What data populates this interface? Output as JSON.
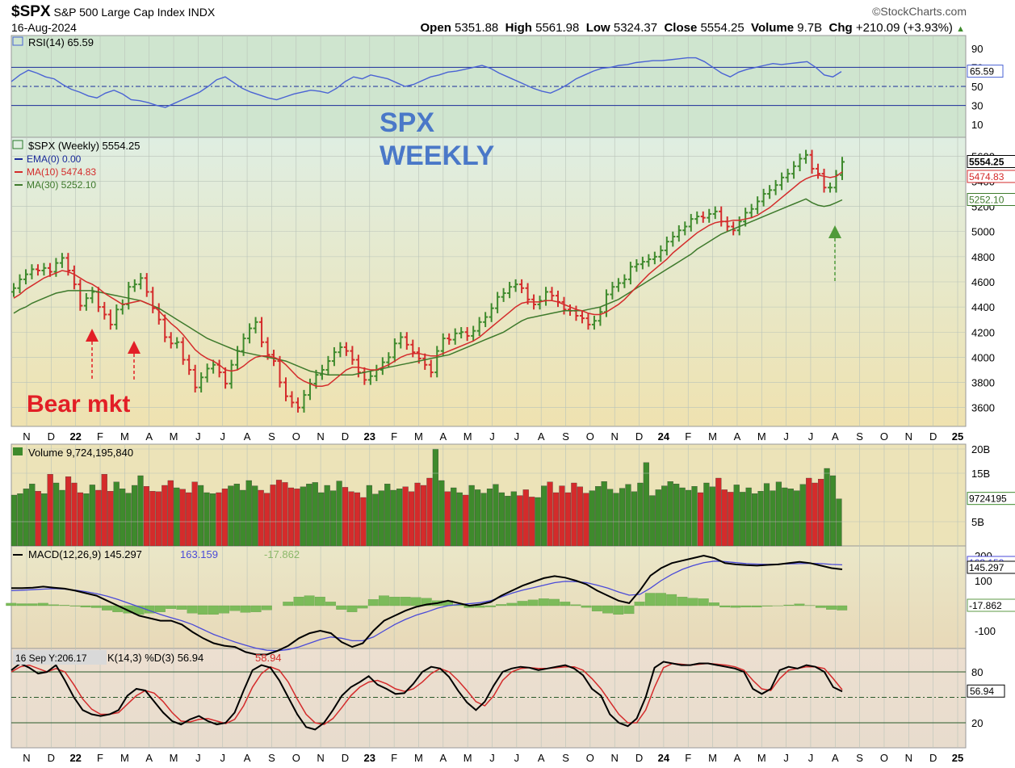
{
  "header": {
    "symbol": "$SPX",
    "name": "S&P 500 Large Cap Index",
    "exchange": "INDX",
    "date": "16-Aug-2024",
    "brand": "©StockCharts.com",
    "open_label": "Open",
    "open": "5351.88",
    "high_label": "High",
    "high": "5561.98",
    "low_label": "Low",
    "low": "5324.37",
    "close_label": "Close",
    "close": "5554.25",
    "volume_label": "Volume",
    "volume": "9.7B",
    "chg_label": "Chg",
    "chg": "+210.09 (+3.93%)",
    "chg_arrow": "▲"
  },
  "annotations": {
    "overlay_text_1": "SPX",
    "overlay_text_2": "WEEKLY",
    "bear_text": "Bear mkt",
    "overlay_color": "#4a78c8",
    "bear_color": "#e21f26",
    "arrow_green": "#4f9a3a"
  },
  "colors": {
    "up": "#3e8a2c",
    "down": "#d42b2b",
    "ema_label": "#1a2a99",
    "ma10": "#d42b2b",
    "ma30": "#3e7a2c",
    "rsi": "#4a63d4",
    "macd": "#000000",
    "signal": "#4a4ad8",
    "hist": "#7cbb5a",
    "grid": "#b9c3b9"
  },
  "chart_data": [
    {
      "type": "line",
      "panel": "RSI",
      "legend": "RSI(14) 65.59",
      "ylim": [
        0,
        100
      ],
      "yticks": [
        "90",
        "70",
        "50",
        "30",
        "10"
      ],
      "reference_lines": [
        70,
        50,
        30
      ],
      "last_value": "65.59",
      "values": [
        55,
        62,
        67,
        64,
        60,
        58,
        52,
        47,
        44,
        40,
        38,
        43,
        46,
        42,
        36,
        35,
        33,
        30,
        28,
        32,
        36,
        40,
        44,
        50,
        57,
        60,
        54,
        48,
        44,
        41,
        38,
        36,
        39,
        42,
        44,
        46,
        45,
        43,
        48,
        55,
        60,
        58,
        62,
        60,
        58,
        54,
        50,
        52,
        56,
        60,
        62,
        65,
        66,
        68,
        70,
        72,
        69,
        64,
        60,
        56,
        52,
        48,
        45,
        43,
        47,
        52,
        58,
        62,
        66,
        69,
        70,
        72,
        73,
        75,
        76,
        77,
        77,
        78,
        79,
        80,
        80,
        76,
        70,
        64,
        60,
        65,
        68,
        70,
        72,
        74,
        73,
        74,
        75,
        76,
        70,
        62,
        60,
        65.59
      ]
    },
    {
      "type": "candlestick",
      "panel": "Price",
      "title": "$SPX (Weekly) 5554.25",
      "legend": [
        {
          "name": "EMA(0) 0.00"
        },
        {
          "name": "MA(10) 5474.83"
        },
        {
          "name": "MA(30) 5252.10"
        }
      ],
      "ylim": [
        3450,
        5750
      ],
      "yticks": [
        "5600",
        "5400",
        "5200",
        "5000",
        "4800",
        "4600",
        "4400",
        "4200",
        "4000",
        "3800",
        "3600"
      ],
      "last_labels": [
        "5554.25",
        "5474.83",
        "5252.10"
      ],
      "xlabels": [
        "N",
        "D",
        "22",
        "F",
        "M",
        "A",
        "M",
        "J",
        "J",
        "A",
        "S",
        "O",
        "N",
        "D",
        "23",
        "F",
        "M",
        "A",
        "M",
        "J",
        "J",
        "A",
        "S",
        "O",
        "N",
        "D",
        "24",
        "F",
        "M",
        "A",
        "M",
        "J",
        "J",
        "A",
        "S",
        "O",
        "N",
        "D",
        "25"
      ],
      "close": [
        4550,
        4620,
        4660,
        4700,
        4690,
        4710,
        4680,
        4750,
        4790,
        4690,
        4580,
        4410,
        4470,
        4520,
        4400,
        4340,
        4260,
        4380,
        4420,
        4560,
        4580,
        4630,
        4520,
        4390,
        4300,
        4160,
        4110,
        4120,
        3980,
        3900,
        3760,
        3840,
        3910,
        3940,
        3880,
        3790,
        3940,
        4050,
        4150,
        4230,
        4280,
        4120,
        4020,
        3970,
        3800,
        3690,
        3640,
        3600,
        3700,
        3790,
        3860,
        3900,
        3970,
        4040,
        4080,
        4050,
        3980,
        3880,
        3820,
        3850,
        3900,
        3960,
        4000,
        4110,
        4160,
        4100,
        4040,
        3990,
        3940,
        3880,
        4050,
        4150,
        4140,
        4190,
        4200,
        4170,
        4210,
        4280,
        4320,
        4390,
        4480,
        4510,
        4560,
        4580,
        4550,
        4460,
        4420,
        4450,
        4520,
        4490,
        4440,
        4380,
        4370,
        4330,
        4310,
        4260,
        4290,
        4360,
        4500,
        4560,
        4590,
        4620,
        4720,
        4740,
        4760,
        4780,
        4800,
        4850,
        4920,
        4960,
        5010,
        5040,
        5100,
        5120,
        5110,
        5140,
        5160,
        5080,
        5040,
        5010,
        5080,
        5150,
        5180,
        5240,
        5300,
        5330,
        5370,
        5430,
        5460,
        5520,
        5580,
        5610,
        5500,
        5460,
        5350,
        5350,
        5450,
        5554.25
      ],
      "ma10": [
        4470,
        4500,
        4540,
        4570,
        4600,
        4630,
        4650,
        4670,
        4690,
        4680,
        4660,
        4630,
        4600,
        4580,
        4550,
        4510,
        4480,
        4450,
        4420,
        4430,
        4440,
        4450,
        4430,
        4410,
        4370,
        4320,
        4270,
        4230,
        4180,
        4120,
        4060,
        4020,
        3990,
        3970,
        3940,
        3900,
        3890,
        3900,
        3930,
        3970,
        4000,
        4010,
        4010,
        4000,
        3980,
        3940,
        3890,
        3840,
        3810,
        3790,
        3770,
        3770,
        3780,
        3820,
        3860,
        3900,
        3920,
        3920,
        3910,
        3900,
        3900,
        3920,
        3940,
        3970,
        4000,
        4020,
        4030,
        4030,
        4020,
        4010,
        4010,
        4030,
        4050,
        4070,
        4090,
        4110,
        4130,
        4160,
        4200,
        4240,
        4280,
        4320,
        4360,
        4400,
        4430,
        4440,
        4440,
        4440,
        4450,
        4450,
        4440,
        4420,
        4400,
        4380,
        4370,
        4350,
        4340,
        4340,
        4360,
        4390,
        4420,
        4460,
        4510,
        4560,
        4610,
        4660,
        4700,
        4740,
        4780,
        4830,
        4870,
        4910,
        4950,
        4990,
        5020,
        5050,
        5070,
        5080,
        5080,
        5090,
        5090,
        5100,
        5110,
        5130,
        5160,
        5190,
        5230,
        5270,
        5310,
        5350,
        5390,
        5420,
        5440,
        5450,
        5440,
        5430,
        5440,
        5474.83
      ],
      "ma30": [
        4350,
        4380,
        4400,
        4430,
        4450,
        4470,
        4490,
        4510,
        4520,
        4530,
        4530,
        4530,
        4530,
        4530,
        4520,
        4510,
        4500,
        4490,
        4480,
        4470,
        4460,
        4450,
        4430,
        4410,
        4390,
        4360,
        4330,
        4300,
        4270,
        4240,
        4210,
        4180,
        4150,
        4130,
        4110,
        4090,
        4070,
        4050,
        4040,
        4030,
        4020,
        4010,
        4000,
        3990,
        3980,
        3970,
        3950,
        3930,
        3910,
        3890,
        3880,
        3870,
        3860,
        3860,
        3860,
        3860,
        3860,
        3870,
        3880,
        3890,
        3900,
        3910,
        3920,
        3930,
        3940,
        3950,
        3960,
        3970,
        3980,
        3990,
        4000,
        4010,
        4020,
        4040,
        4060,
        4080,
        4100,
        4120,
        4140,
        4160,
        4180,
        4200,
        4230,
        4260,
        4290,
        4310,
        4320,
        4330,
        4340,
        4350,
        4360,
        4370,
        4370,
        4370,
        4370,
        4380,
        4390,
        4400,
        4420,
        4440,
        4460,
        4490,
        4520,
        4550,
        4580,
        4610,
        4640,
        4670,
        4700,
        4730,
        4760,
        4790,
        4820,
        4860,
        4890,
        4920,
        4950,
        4980,
        5000,
        5020,
        5040,
        5060,
        5080,
        5100,
        5120,
        5140,
        5160,
        5180,
        5200,
        5220,
        5240,
        5260,
        5230,
        5210,
        5200,
        5210,
        5230,
        5252.1
      ]
    },
    {
      "type": "bar",
      "panel": "Volume",
      "legend": "Volume 9,724,195,840",
      "yticks": [
        "20B",
        "15B",
        "5B"
      ],
      "last_label": "9724195",
      "values": [
        10.5,
        10.8,
        11.8,
        12.8,
        11.3,
        10.8,
        14.8,
        13.0,
        11.5,
        14.3,
        13.0,
        11.0,
        10.8,
        12.6,
        11.5,
        14.8,
        11.3,
        13.2,
        11.8,
        10.9,
        12.5,
        14.5,
        12.3,
        11.3,
        11.2,
        12.5,
        13.5,
        12.0,
        11.7,
        11.0,
        13.2,
        12.5,
        11.0,
        10.8,
        11.0,
        11.8,
        12.4,
        12.8,
        11.5,
        13.5,
        12.4,
        11.5,
        10.9,
        12.6,
        13.6,
        13.1,
        12.0,
        11.8,
        12.2,
        12.8,
        13.1,
        11.0,
        12.5,
        11.4,
        13.4,
        12.1,
        11.2,
        11.0,
        10.0,
        12.5,
        10.7,
        11.4,
        12.8,
        11.5,
        11.8,
        12.2,
        11.2,
        13.0,
        12.5,
        14.0,
        20.0,
        13.5,
        11.2,
        12.0,
        11.0,
        10.5,
        12.5,
        11.6,
        10.9,
        11.8,
        12.7,
        11.0,
        10.3,
        11.2,
        10.4,
        11.6,
        10.1,
        10.0,
        12.4,
        13.2,
        11.0,
        12.4,
        11.0,
        13.0,
        12.2,
        10.9,
        11.4,
        12.3,
        13.3,
        11.7,
        10.9,
        11.9,
        12.7,
        11.2,
        13.0,
        17.2,
        10.4,
        11.6,
        12.4,
        13.3,
        12.8,
        12.0,
        11.5,
        12.3,
        11.0,
        13.0,
        12.2,
        14.0,
        11.6,
        11.1,
        12.6,
        11.1,
        12.0,
        10.8,
        11.3,
        12.9,
        11.4,
        13.2,
        12.0,
        11.8,
        11.4,
        12.7,
        14.0,
        13.0,
        13.8,
        16.0,
        14.5,
        9.72
      ]
    },
    {
      "type": "line",
      "panel": "MACD",
      "legend": [
        {
          "name": "MACD(12,26,9) 145.297"
        },
        {
          "name": "163.159"
        },
        {
          "name": "-17.862"
        }
      ],
      "yticks": [
        "200",
        "100",
        "-100"
      ],
      "last_labels": [
        "163.159",
        "145.297",
        "-17.862"
      ],
      "macd": [
        70,
        70,
        72,
        76,
        72,
        68,
        60,
        50,
        40,
        20,
        0,
        -20,
        -40,
        -50,
        -60,
        -60,
        -75,
        -105,
        -130,
        -150,
        -160,
        -165,
        -185,
        -195,
        -195,
        -180,
        -160,
        -130,
        -110,
        -100,
        -110,
        -145,
        -165,
        -150,
        -100,
        -60,
        -40,
        -20,
        -5,
        5,
        10,
        20,
        10,
        0,
        5,
        15,
        40,
        60,
        80,
        95,
        110,
        118,
        112,
        100,
        85,
        60,
        40,
        20,
        10,
        60,
        120,
        150,
        170,
        180,
        190,
        200,
        190,
        170,
        165,
        162,
        160,
        163,
        165,
        170,
        175,
        170,
        160,
        150,
        145.297
      ],
      "signal": [
        60,
        62,
        64,
        66,
        68,
        66,
        62,
        56,
        48,
        38,
        25,
        10,
        -5,
        -20,
        -35,
        -48,
        -60,
        -75,
        -95,
        -115,
        -130,
        -145,
        -158,
        -170,
        -178,
        -180,
        -175,
        -165,
        -150,
        -135,
        -125,
        -130,
        -140,
        -140,
        -125,
        -100,
        -75,
        -55,
        -38,
        -25,
        -10,
        0,
        5,
        8,
        12,
        20,
        35,
        50,
        62,
        72,
        82,
        92,
        97,
        96,
        92,
        82,
        70,
        55,
        42,
        45,
        70,
        100,
        125,
        145,
        160,
        172,
        178,
        176,
        172,
        168,
        166,
        165,
        166,
        167,
        168,
        169,
        168,
        165,
        163.159
      ],
      "histogram": [
        10,
        8,
        8,
        10,
        4,
        2,
        -2,
        -6,
        -8,
        -18,
        -25,
        -30,
        -35,
        -30,
        -25,
        -12,
        -15,
        -30,
        -35,
        -35,
        -30,
        -20,
        -27,
        -25,
        -17,
        0,
        15,
        35,
        40,
        35,
        15,
        -15,
        -25,
        -10,
        25,
        40,
        35,
        35,
        33,
        30,
        20,
        20,
        5,
        -8,
        -7,
        -5,
        5,
        10,
        18,
        23,
        28,
        26,
        15,
        4,
        -7,
        -22,
        -30,
        -35,
        -32,
        15,
        50,
        50,
        45,
        35,
        30,
        28,
        12,
        -6,
        -7,
        -6,
        -6,
        -2,
        -1,
        3,
        7,
        1,
        -8,
        -15,
        -17.862
      ]
    },
    {
      "type": "line",
      "panel": "Stochastic",
      "legend": [
        {
          "name": "16 Sep Y:206.17"
        },
        {
          "name": "K(14,3) %D(3) 56.94"
        },
        {
          "name": "58.94"
        }
      ],
      "yticks": [
        "80",
        "20"
      ],
      "reference_lines": [
        80,
        50,
        20
      ],
      "last_labels": [
        "56.94"
      ],
      "k": [
        82,
        90,
        85,
        78,
        80,
        88,
        70,
        50,
        35,
        30,
        28,
        30,
        35,
        52,
        60,
        58,
        45,
        32,
        22,
        18,
        24,
        28,
        22,
        18,
        20,
        32,
        58,
        82,
        88,
        85,
        70,
        50,
        30,
        15,
        12,
        20,
        35,
        52,
        62,
        68,
        75,
        65,
        60,
        54,
        55,
        66,
        80,
        86,
        84,
        74,
        58,
        44,
        35,
        45,
        64,
        80,
        84,
        86,
        85,
        82,
        84,
        86,
        88,
        84,
        76,
        60,
        52,
        30,
        20,
        16,
        25,
        50,
        85,
        92,
        90,
        88,
        88,
        90,
        90,
        88,
        86,
        84,
        80,
        60,
        54,
        60,
        82,
        86,
        84,
        88,
        86,
        80,
        62,
        56.94
      ],
      "d": [
        80,
        86,
        88,
        84,
        80,
        84,
        80,
        65,
        48,
        36,
        30,
        30,
        32,
        42,
        52,
        58,
        55,
        45,
        32,
        22,
        21,
        24,
        25,
        22,
        19,
        24,
        40,
        62,
        78,
        86,
        82,
        68,
        48,
        30,
        20,
        18,
        25,
        38,
        52,
        62,
        68,
        70,
        66,
        60,
        57,
        60,
        68,
        78,
        84,
        80,
        70,
        58,
        45,
        40,
        52,
        70,
        80,
        84,
        85,
        84,
        84,
        85,
        86,
        86,
        82,
        72,
        60,
        45,
        30,
        20,
        20,
        35,
        62,
        85,
        90,
        89,
        88,
        89,
        90,
        89,
        88,
        86,
        82,
        70,
        60,
        58,
        72,
        82,
        84,
        86,
        86,
        84,
        72,
        58.94
      ]
    }
  ]
}
